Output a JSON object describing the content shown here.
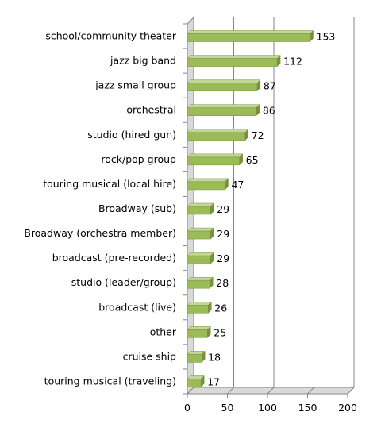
{
  "chart_data": {
    "type": "bar",
    "orientation": "horizontal",
    "categories": [
      "school/community  theater",
      "jazz big band",
      "jazz small group",
      "orchestral",
      "studio (hired gun)",
      "rock/pop group",
      "touring musical (local hire)",
      "Broadway (sub)",
      "Broadway (orchestra member)",
      "broadcast (pre-recorded)",
      "studio (leader/group)",
      "broadcast (live)",
      "other",
      "cruise ship",
      "touring musical (traveling)"
    ],
    "values": [
      153,
      112,
      87,
      86,
      72,
      65,
      47,
      29,
      29,
      29,
      28,
      26,
      25,
      18,
      17
    ],
    "title": "",
    "xlabel": "",
    "ylabel": "",
    "xlim": [
      0,
      200
    ],
    "xticks": [
      0,
      50,
      100,
      150,
      200
    ],
    "grid": true,
    "legend": "none",
    "bar_color": "#9bbb59",
    "bar_top_color": "#c3d69b",
    "bar_side_color": "#76923c",
    "grid_color": "#868686",
    "wall_color": "#d9d9d9"
  }
}
